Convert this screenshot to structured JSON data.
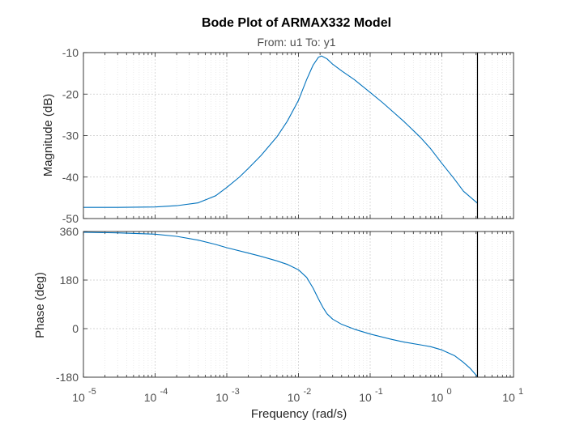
{
  "chart_data": {
    "type": "line",
    "title": "Bode Plot of ARMAX332 Model",
    "subtitle": "From: u1  To: y1",
    "xlabel": "Frequency  (rad/s)",
    "xscale": "log",
    "xlim": [
      1e-05,
      10
    ],
    "x_tick_labels": [
      {
        "base": "10",
        "exp": "-5"
      },
      {
        "base": "10",
        "exp": "-4"
      },
      {
        "base": "10",
        "exp": "-3"
      },
      {
        "base": "10",
        "exp": "-2"
      },
      {
        "base": "10",
        "exp": "-1"
      },
      {
        "base": "10",
        "exp": "0"
      },
      {
        "base": "10",
        "exp": "1"
      }
    ],
    "nyquist_frequency": 3.14,
    "grid": true,
    "line_color": "#0072bd",
    "axes_color": "#262626",
    "grid_color": "#dedede",
    "panels": [
      {
        "ylabel": "Magnitude (dB)",
        "ylim": [
          -50,
          -10
        ],
        "yticks": [
          -50,
          -40,
          -30,
          -20,
          -10
        ],
        "ytick_labels": [
          "-50",
          "-40",
          "-30",
          "-20",
          "-10"
        ],
        "series": [
          {
            "x": [
              1e-05,
              3e-05,
              0.0001,
              0.0002,
              0.0004,
              0.0007,
              0.001,
              0.0015,
              0.002,
              0.003,
              0.005,
              0.007,
              0.01,
              0.013,
              0.016,
              0.019,
              0.021,
              0.025,
              0.03,
              0.04,
              0.06,
              0.1,
              0.15,
              0.2,
              0.3,
              0.5,
              0.7,
              1,
              1.5,
              2,
              3.14
            ],
            "y": [
              -47.3,
              -47.3,
              -47.2,
              -46.9,
              -46.2,
              -44.5,
              -42.5,
              -40.0,
              -37.9,
              -34.8,
              -30.3,
              -26.5,
              -21.5,
              -16.5,
              -13.0,
              -11.1,
              -10.8,
              -11.5,
              -12.8,
              -14.4,
              -16.5,
              -19.6,
              -22.1,
              -24.0,
              -26.7,
              -30.4,
              -33.2,
              -36.7,
              -40.5,
              -43.4,
              -46.3
            ]
          }
        ]
      },
      {
        "ylabel": "Phase (deg)",
        "ylim": [
          -180,
          360
        ],
        "yticks": [
          -180,
          0,
          180,
          360
        ],
        "ytick_labels": [
          "-180",
          "0",
          "180",
          "360"
        ],
        "series": [
          {
            "x": [
              1e-05,
              3e-05,
              0.0001,
              0.0002,
              0.0004,
              0.0007,
              0.001,
              0.002,
              0.003,
              0.005,
              0.007,
              0.01,
              0.013,
              0.016,
              0.019,
              0.022,
              0.025,
              0.03,
              0.04,
              0.06,
              0.1,
              0.2,
              0.3,
              0.5,
              0.7,
              1,
              1.5,
              2,
              2.5,
              3.14
            ],
            "y": [
              357,
              355,
              350,
              342,
              328,
              312,
              300,
              280,
              268,
              251,
              238,
              218,
              190,
              150,
              110,
              78,
              55,
              35,
              16,
              -2,
              -20,
              -40,
              -50,
              -60,
              -67,
              -79,
              -100,
              -125,
              -148,
              -178
            ]
          }
        ]
      }
    ]
  }
}
